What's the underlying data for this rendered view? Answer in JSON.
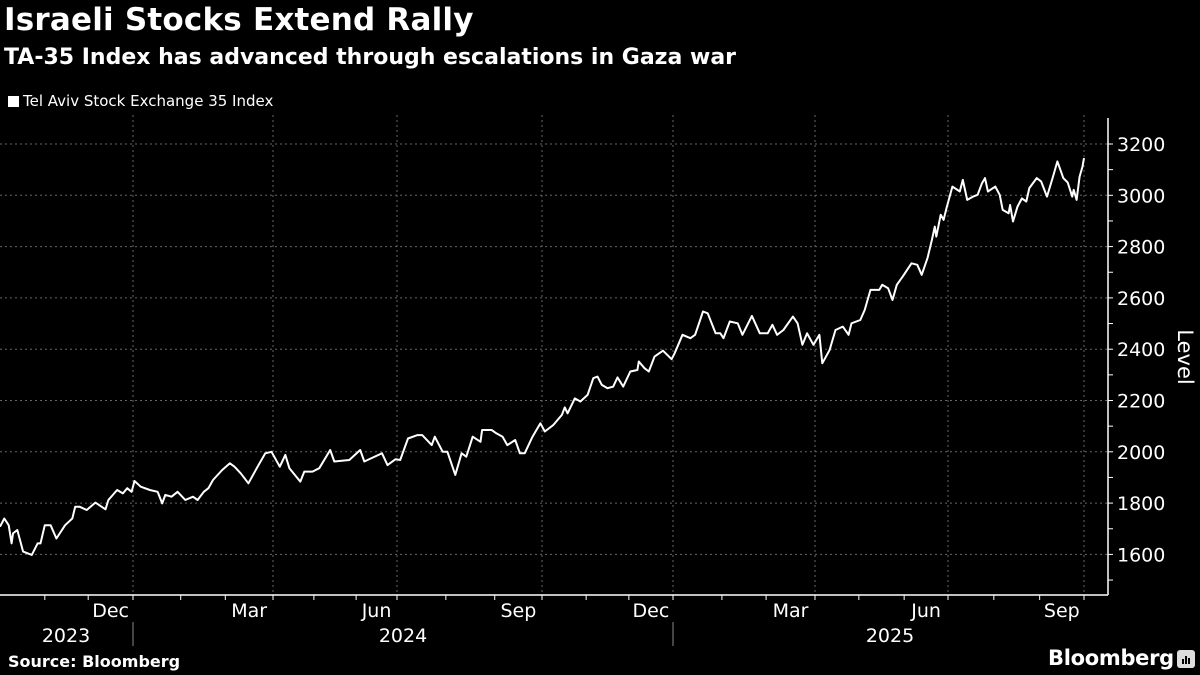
{
  "header": {
    "title": "Israeli Stocks Extend Rally",
    "subtitle": "TA-35 Index has advanced through escalations in Gaza war"
  },
  "legend": {
    "label": "Tel Aviv Stock Exchange 35 Index",
    "color": "#ffffff"
  },
  "footer": {
    "source": "Source: Bloomberg",
    "logo": "Bloomberg"
  },
  "chart_data": {
    "type": "line",
    "title": "Israeli Stocks Extend Rally",
    "subtitle": "TA-35 Index has advanced through escalations in Gaza war",
    "xlabel": "",
    "ylabel": "Level",
    "ylim": [
      1450,
      3280
    ],
    "yticks": [
      1600,
      1800,
      2000,
      2200,
      2400,
      2600,
      2800,
      3000,
      3200
    ],
    "xtick_labels": [
      {
        "label": "Dec",
        "month": "2023-12"
      },
      {
        "label": "Mar",
        "month": "2024-03"
      },
      {
        "label": "Jun",
        "month": "2024-06"
      },
      {
        "label": "Sep",
        "month": "2024-09"
      },
      {
        "label": "Dec",
        "month": "2024-12"
      },
      {
        "label": "Mar",
        "month": "2025-03"
      },
      {
        "label": "Jun",
        "month": "2025-06"
      },
      {
        "label": "Sep",
        "month": "2025-09"
      }
    ],
    "year_labels": [
      "2023",
      "2024",
      "2025"
    ],
    "grid": true,
    "legend_position": "top-left",
    "line_color": "#ffffff",
    "background": "#000000",
    "series": [
      {
        "name": "Tel Aviv Stock Exchange 35 Index",
        "x": [
          "2023-10-01",
          "2023-10-04",
          "2023-10-07",
          "2023-10-09",
          "2023-10-10",
          "2023-10-13",
          "2023-10-17",
          "2023-10-23",
          "2023-10-27",
          "2023-10-29",
          "2023-11-01",
          "2023-11-05",
          "2023-11-09",
          "2023-11-15",
          "2023-11-20",
          "2023-11-22",
          "2023-11-25",
          "2023-11-30",
          "2023-12-06",
          "2023-12-13",
          "2023-12-15",
          "2023-12-21",
          "2023-12-25",
          "2023-12-28",
          "2023-12-31",
          "2024-01-02",
          "2024-01-06",
          "2024-01-12",
          "2024-01-17",
          "2024-01-20",
          "2024-01-22",
          "2024-01-26",
          "2024-01-30",
          "2024-02-04",
          "2024-02-09",
          "2024-02-12",
          "2024-02-16",
          "2024-02-19",
          "2024-02-22",
          "2024-02-28",
          "2024-03-04",
          "2024-03-07",
          "2024-03-11",
          "2024-03-16",
          "2024-03-22",
          "2024-03-27",
          "2024-03-31",
          "2024-04-06",
          "2024-04-10",
          "2024-04-13",
          "2024-04-21",
          "2024-04-24",
          "2024-04-30",
          "2024-05-05",
          "2024-05-13",
          "2024-05-16",
          "2024-05-27",
          "2024-06-04",
          "2024-06-07",
          "2024-06-20",
          "2024-06-24",
          "2024-06-30",
          "2024-07-03",
          "2024-07-08",
          "2024-07-14",
          "2024-07-17",
          "2024-07-23",
          "2024-07-25",
          "2024-07-30",
          "2024-08-02",
          "2024-08-07",
          "2024-08-11",
          "2024-08-14",
          "2024-08-18",
          "2024-08-23",
          "2024-08-24",
          "2024-08-30",
          "2024-09-02",
          "2024-09-06",
          "2024-09-09",
          "2024-09-14",
          "2024-09-17",
          "2024-09-20",
          "2024-09-25",
          "2024-09-30",
          "2024-10-03",
          "2024-10-09",
          "2024-10-15",
          "2024-10-17",
          "2024-10-19",
          "2024-10-24",
          "2024-10-28",
          "2024-11-02",
          "2024-11-06",
          "2024-11-09",
          "2024-11-12",
          "2024-11-16",
          "2024-11-20",
          "2024-11-23",
          "2024-11-27",
          "2024-12-02",
          "2024-12-07",
          "2024-12-08",
          "2024-12-12",
          "2024-12-15",
          "2024-12-19",
          "2024-12-25",
          "2024-12-31",
          "2025-01-02",
          "2025-01-07",
          "2025-01-12",
          "2025-01-15",
          "2025-01-20",
          "2025-01-23",
          "2025-01-28",
          "2025-01-31",
          "2025-02-02",
          "2025-02-06",
          "2025-02-11",
          "2025-02-14",
          "2025-02-20",
          "2025-02-25",
          "2025-03-02",
          "2025-03-05",
          "2025-03-08",
          "2025-03-12",
          "2025-03-18",
          "2025-03-21",
          "2025-03-24",
          "2025-03-27",
          "2025-03-31",
          "2025-04-04",
          "2025-04-06",
          "2025-04-11",
          "2025-04-15",
          "2025-04-20",
          "2025-04-24",
          "2025-04-26",
          "2025-05-02",
          "2025-05-05",
          "2025-05-09",
          "2025-05-15",
          "2025-05-17",
          "2025-05-21",
          "2025-05-24",
          "2025-05-27",
          "2025-05-31",
          "2025-06-03",
          "2025-06-06",
          "2025-06-10",
          "2025-06-13",
          "2025-06-17",
          "2025-06-20",
          "2025-06-22",
          "2025-06-23",
          "2025-06-26",
          "2025-06-28",
          "2025-06-30",
          "2025-07-04",
          "2025-07-09",
          "2025-07-11",
          "2025-07-14",
          "2025-07-18",
          "2025-07-21",
          "2025-07-24",
          "2025-07-26",
          "2025-07-28",
          "2025-08-02",
          "2025-08-05",
          "2025-08-07",
          "2025-08-11",
          "2025-08-12",
          "2025-08-14",
          "2025-08-17",
          "2025-08-20",
          "2025-08-23",
          "2025-08-25",
          "2025-08-30",
          "2025-09-02",
          "2025-09-06",
          "2025-09-10",
          "2025-09-13",
          "2025-09-17",
          "2025-09-20",
          "2025-09-23",
          "2025-09-24",
          "2025-09-26",
          "2025-09-28",
          "2025-09-30",
          "2025-10-01"
        ],
        "y": [
          1708,
          1740,
          1714,
          1643,
          1682,
          1695,
          1611,
          1598,
          1643,
          1643,
          1714,
          1714,
          1662,
          1714,
          1740,
          1786,
          1786,
          1773,
          1802,
          1776,
          1812,
          1851,
          1838,
          1858,
          1844,
          1886,
          1864,
          1851,
          1844,
          1799,
          1832,
          1825,
          1844,
          1812,
          1825,
          1812,
          1844,
          1858,
          1890,
          1929,
          1955,
          1942,
          1916,
          1877,
          1942,
          1994,
          2000,
          1942,
          1988,
          1936,
          1884,
          1923,
          1923,
          1936,
          2007,
          1962,
          1968,
          2007,
          1962,
          1994,
          1948,
          1971,
          1968,
          2052,
          2065,
          2065,
          2026,
          2059,
          2000,
          2000,
          1910,
          1994,
          1981,
          2059,
          2039,
          2085,
          2085,
          2072,
          2059,
          2026,
          2046,
          1994,
          1994,
          2059,
          2111,
          2079,
          2105,
          2144,
          2173,
          2150,
          2208,
          2196,
          2222,
          2287,
          2293,
          2261,
          2248,
          2254,
          2290,
          2254,
          2313,
          2319,
          2352,
          2326,
          2313,
          2371,
          2394,
          2361,
          2384,
          2456,
          2443,
          2456,
          2547,
          2540,
          2462,
          2462,
          2443,
          2508,
          2501,
          2456,
          2530,
          2462,
          2462,
          2495,
          2456,
          2475,
          2527,
          2501,
          2417,
          2462,
          2417,
          2456,
          2345,
          2397,
          2475,
          2488,
          2456,
          2501,
          2514,
          2553,
          2631,
          2631,
          2651,
          2638,
          2592,
          2651,
          2683,
          2709,
          2735,
          2729,
          2690,
          2755,
          2826,
          2878,
          2839,
          2924,
          2904,
          2950,
          3034,
          3015,
          3060,
          2982,
          2995,
          3002,
          3047,
          3067,
          3015,
          3034,
          3002,
          2943,
          2930,
          2962,
          2898,
          2956,
          2988,
          2976,
          3028,
          3067,
          3054,
          2995,
          3073,
          3132,
          3067,
          3050,
          2995,
          3021,
          2982,
          3073,
          3112,
          3145
        ]
      }
    ]
  }
}
